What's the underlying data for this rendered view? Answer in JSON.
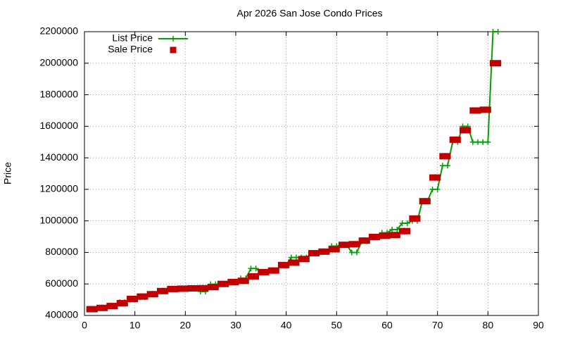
{
  "chart_data": {
    "type": "line",
    "title": "Apr 2026 San Jose Condo Prices",
    "y_label": "Price",
    "x": [
      1,
      2,
      3,
      4,
      5,
      6,
      7,
      8,
      9,
      10,
      11,
      12,
      13,
      14,
      15,
      16,
      17,
      18,
      19,
      20,
      21,
      22,
      23,
      24,
      25,
      26,
      27,
      28,
      29,
      30,
      31,
      32,
      33,
      34,
      35,
      36,
      37,
      38,
      39,
      40,
      41,
      42,
      43,
      44,
      45,
      46,
      47,
      48,
      49,
      50,
      51,
      52,
      53,
      54,
      55,
      56,
      57,
      58,
      59,
      60,
      61,
      62,
      63,
      64,
      65,
      66,
      67,
      68,
      69,
      70,
      71,
      72,
      73,
      74,
      75,
      76,
      77,
      78,
      79,
      80,
      81,
      82
    ],
    "series": [
      {
        "name": "List Price",
        "color": "#00a000",
        "marker": "plus",
        "values": [
          440000,
          440000,
          448000,
          448000,
          460000,
          460000,
          485000,
          485000,
          500000,
          500000,
          515000,
          515000,
          535000,
          535000,
          555000,
          555000,
          568000,
          568000,
          570000,
          570000,
          572000,
          572000,
          552000,
          552000,
          598000,
          598000,
          600000,
          600000,
          612000,
          612000,
          635000,
          635000,
          698000,
          698000,
          675000,
          675000,
          685000,
          685000,
          720000,
          720000,
          768000,
          768000,
          768000,
          768000,
          795000,
          795000,
          805000,
          805000,
          840000,
          840000,
          848000,
          848000,
          800000,
          800000,
          870000,
          870000,
          898000,
          898000,
          925000,
          925000,
          945000,
          945000,
          985000,
          985000,
          1000000,
          1000000,
          1125000,
          1125000,
          1200000,
          1200000,
          1350000,
          1350000,
          1500000,
          1500000,
          1600000,
          1600000,
          1500000,
          1500000,
          1500000,
          1500000,
          2200000,
          2200000
        ]
      },
      {
        "name": "Sale Price",
        "color": "#c00000",
        "marker": "square",
        "values": [
          440000,
          440000,
          448000,
          448000,
          460000,
          460000,
          478000,
          478000,
          505000,
          505000,
          520000,
          520000,
          535000,
          535000,
          555000,
          555000,
          568000,
          568000,
          570000,
          570000,
          572000,
          572000,
          573000,
          573000,
          580000,
          580000,
          600000,
          600000,
          612000,
          612000,
          620000,
          620000,
          648000,
          648000,
          675000,
          675000,
          685000,
          685000,
          720000,
          720000,
          735000,
          735000,
          758000,
          758000,
          795000,
          795000,
          805000,
          805000,
          820000,
          820000,
          848000,
          848000,
          852000,
          852000,
          875000,
          875000,
          898000,
          898000,
          905000,
          905000,
          910000,
          910000,
          935000,
          935000,
          1015000,
          1015000,
          1125000,
          1125000,
          1275000,
          1275000,
          1410000,
          1410000,
          1515000,
          1515000,
          1575000,
          1575000,
          1700000,
          1700000,
          1705000,
          1705000,
          2000000,
          2000000
        ]
      }
    ],
    "xlim": [
      0,
      90
    ],
    "xticks": [
      0,
      10,
      20,
      30,
      40,
      50,
      60,
      70,
      80,
      90
    ],
    "ylim": [
      400000,
      2200000
    ],
    "yticks": [
      400000,
      600000,
      800000,
      1000000,
      1200000,
      1400000,
      1600000,
      1800000,
      2000000,
      2200000
    ],
    "grid": true,
    "legend": "top-left"
  }
}
